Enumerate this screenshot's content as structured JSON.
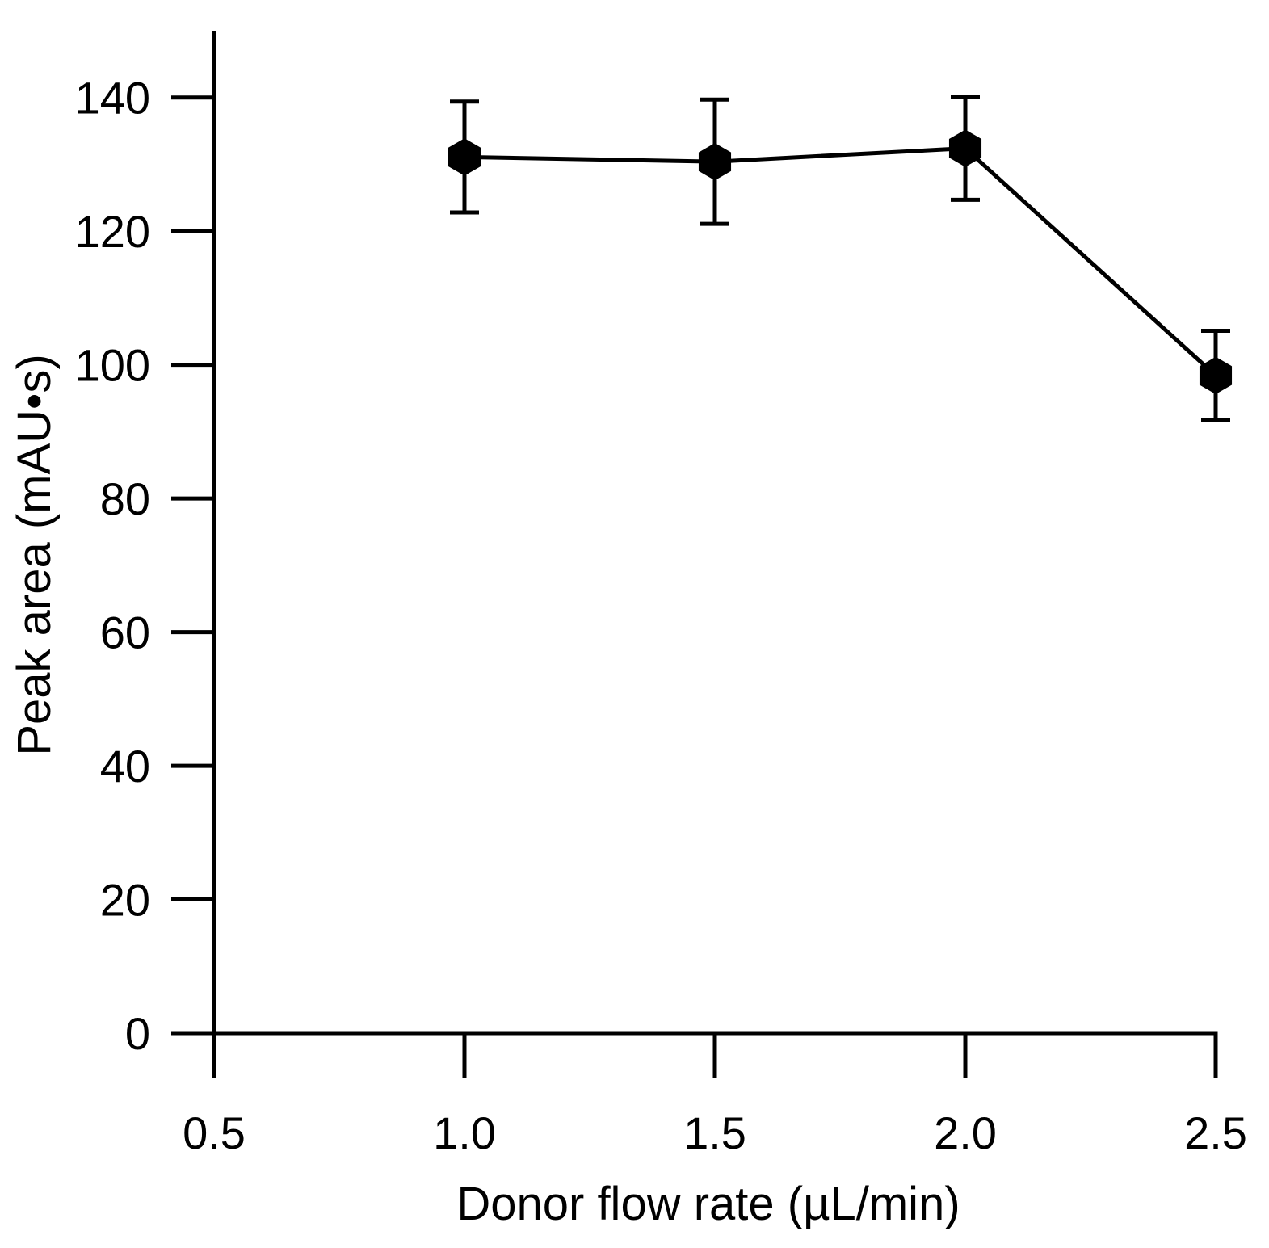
{
  "chart_data": {
    "type": "line",
    "title": "",
    "xlabel": "Donor flow rate (µL/min)",
    "ylabel": "Peak area (mAU•s)",
    "xlim": [
      0.5,
      2.5
    ],
    "ylim": [
      0,
      150
    ],
    "x_ticks": [
      0.5,
      1.0,
      1.5,
      2.0,
      2.5
    ],
    "x_tick_labels": [
      "0.5",
      "1.0",
      "1.5",
      "2.0",
      "2.5"
    ],
    "y_ticks": [
      0,
      20,
      40,
      60,
      80,
      100,
      120,
      140
    ],
    "y_tick_labels": [
      "0",
      "20",
      "40",
      "60",
      "80",
      "100",
      "120",
      "140"
    ],
    "grid": false,
    "series": [
      {
        "name": "Peak area",
        "x": [
          1.0,
          1.5,
          2.0,
          2.5
        ],
        "y": [
          131.1,
          130.4,
          132.4,
          98.4
        ],
        "error": [
          8.3,
          9.3,
          7.7,
          6.7
        ],
        "marker": "hexagon",
        "color": "#000000"
      }
    ]
  }
}
